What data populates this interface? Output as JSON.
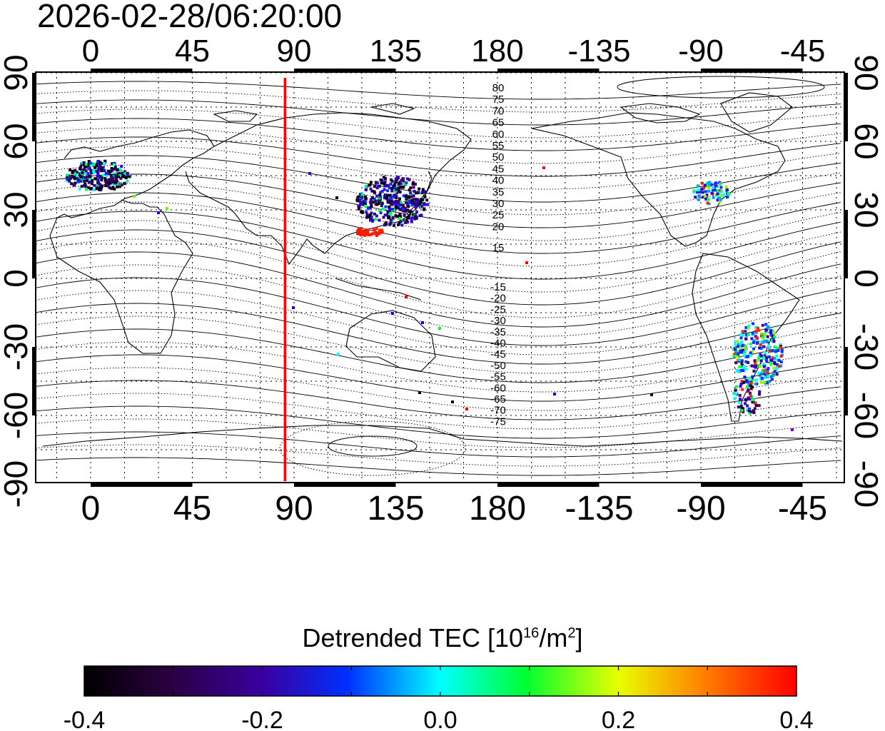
{
  "title": "2026-02-28/06:20:00",
  "map": {
    "lon_labels_top": [
      "0",
      "45",
      "90",
      "135",
      "180",
      "-135",
      "-90",
      "-45"
    ],
    "lon_labels_bottom": [
      "0",
      "45",
      "90",
      "135",
      "180",
      "-135",
      "-90",
      "-45"
    ],
    "lat_labels_left": [
      "90",
      "60",
      "30",
      "0",
      "-30",
      "-60",
      "-90"
    ],
    "lat_labels_right": [
      "90",
      "60",
      "30",
      "0",
      "-30",
      "-60",
      "-90"
    ],
    "contour_labels_north": [
      "80",
      "75",
      "70",
      "65",
      "60",
      "55",
      "50",
      "45",
      "40",
      "35",
      "30",
      "25",
      "20",
      "15"
    ],
    "contour_labels_south": [
      "-15",
      "-20",
      "-25",
      "-30",
      "-35",
      "-40",
      "-45",
      "-50",
      "-55",
      "-60",
      "-65",
      "-70",
      "-75"
    ],
    "terminator_longitude": 86,
    "marker_color": "#ff0000"
  },
  "colorbar": {
    "title_prefix": "Detrended TEC  [10",
    "title_exp": "16",
    "title_mid": "/m",
    "title_exp2": "2",
    "title_suffix": "]",
    "tick_labels": [
      "-0.4",
      "-0.2",
      "0.0",
      "0.2",
      "0.4"
    ],
    "min": -0.4,
    "max": 0.4
  }
}
